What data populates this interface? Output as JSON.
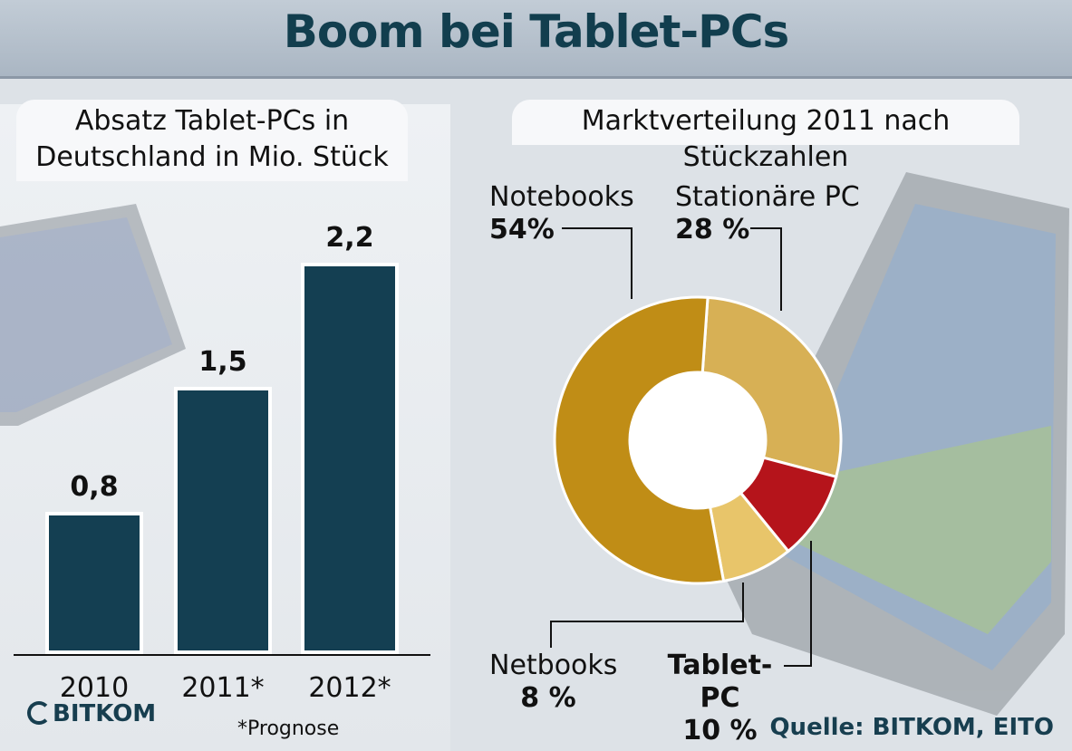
{
  "title": "Boom bei Tablet-PCs",
  "left_panel": {
    "title_line1": "Absatz Tablet-PCs in",
    "title_line2": "Deutschland in Mio. Stück"
  },
  "right_panel": {
    "title": "Marktverteilung 2011 nach Stückzahlen"
  },
  "footnote": "*Prognose",
  "logo": {
    "text": "BITKOM",
    "color": "#173e4f"
  },
  "source": "Quelle: BITKOM, EITO",
  "chart_data": [
    {
      "type": "bar",
      "title": "Absatz Tablet-PCs in Deutschland in Mio. Stück",
      "categories": [
        "2010",
        "2011*",
        "2012*"
      ],
      "values": [
        0.8,
        1.5,
        2.2
      ],
      "value_labels": [
        "0,8",
        "1,5",
        "2,2"
      ],
      "ylim": [
        0,
        2.2
      ],
      "color": "#143f52",
      "grid": false
    },
    {
      "type": "pie",
      "title": "Marktverteilung 2011 nach Stückzahlen",
      "donut": true,
      "slices": [
        {
          "name": "Notebooks",
          "value": 54,
          "label": "54%",
          "color": "#c08d16"
        },
        {
          "name": "Stationäre PC",
          "value": 28,
          "label": "28 %",
          "color": "#d7b055"
        },
        {
          "name": "Tablet-PC",
          "value": 10,
          "label": "10 %",
          "color": "#b5141b"
        },
        {
          "name": "Netbooks",
          "value": 8,
          "label": "8 %",
          "color": "#e8c56a"
        }
      ]
    }
  ]
}
